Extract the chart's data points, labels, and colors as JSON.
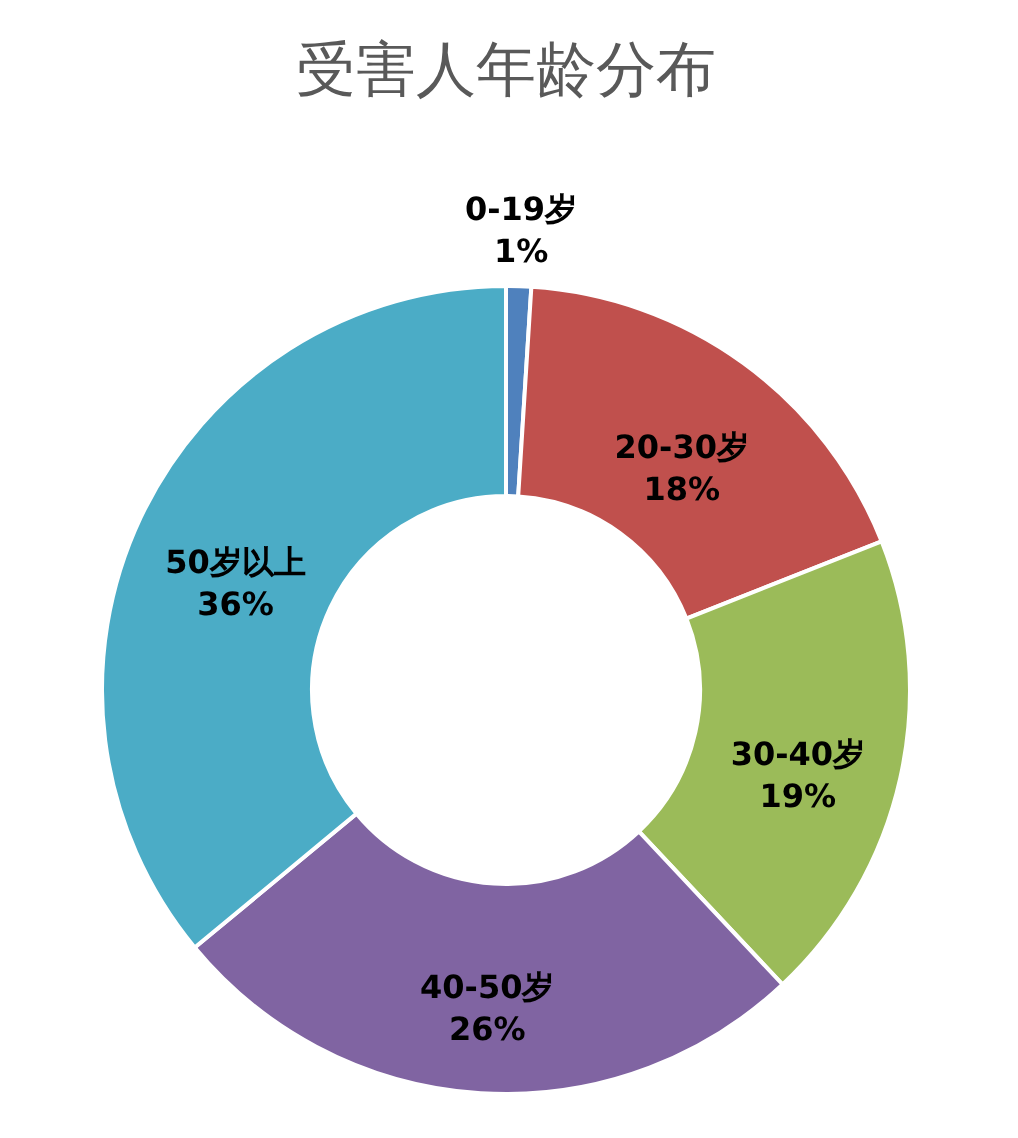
{
  "chart_data": {
    "type": "donut",
    "title": "受害人年龄分布",
    "categories": [
      "0-19岁",
      "20-30岁",
      "30-40岁",
      "40-50岁",
      "50岁以上"
    ],
    "values": [
      1,
      18,
      19,
      26,
      36
    ],
    "value_labels": [
      "1%",
      "18%",
      "19%",
      "26%",
      "36%"
    ],
    "colors": [
      "#4f81bd",
      "#c0504d",
      "#9bbb59",
      "#8064a2",
      "#4bacc6"
    ]
  }
}
